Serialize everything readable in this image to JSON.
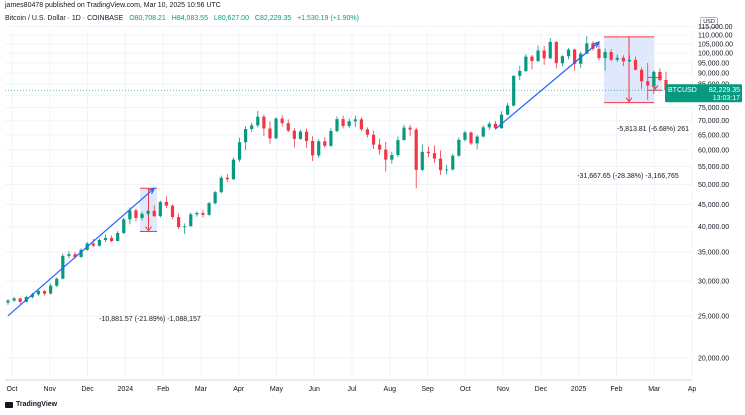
{
  "header": {
    "publisher_line": "james80478 published on TradingView.com, Mar 10, 2025 10:56 UTC",
    "symbol_title": "Bitcoin / U.S. Dollar · 1D · COINBASE",
    "open_label": "O80,708.21",
    "high_label": "H84,083.55",
    "low_label": "L80,627.00",
    "close_label": "C82,229.35",
    "change_label": "+1,530.19 (+1.90%)"
  },
  "currency": "USD",
  "brand": "TradingView",
  "colors": {
    "up": "#089981",
    "down": "#f23645",
    "trendline": "#2962ff",
    "measure_fill": "#d6e2fb",
    "measure_line": "#f23645",
    "price_tag": "#089981"
  },
  "chart_data": {
    "type": "candlestick",
    "title": "Bitcoin / U.S. Dollar · 1D · COINBASE",
    "ylim": [
      18000,
      113000
    ],
    "y_scale": "log",
    "grid": true,
    "y_ticks": [
      "115,000.00",
      "110,000.00",
      "105,000.00",
      "100,000.00",
      "95,000.00",
      "90,000.00",
      "85,000.00",
      "80,000.00",
      "75,000.00",
      "70,000.00",
      "65,000.00",
      "60,000.00",
      "55,000.00",
      "50,000.00",
      "45,000.00",
      "40,000.00",
      "35,000.00",
      "30,000.00",
      "25,000.00",
      "20,000.00"
    ],
    "x_ticks": [
      "Oct",
      "Nov",
      "Dec",
      "2024",
      "Feb",
      "Mar",
      "Apr",
      "May",
      "Jun",
      "Jul",
      "Aug",
      "Sep",
      "Oct",
      "Nov",
      "Dec",
      "2025",
      "Feb",
      "Mar",
      "Ap"
    ],
    "last_price": "82,229.35",
    "last_price_time": "13:03:17",
    "annotations": [
      {
        "type": "measure",
        "text": "-10,881.57 (-21.89%) -1,088,157",
        "low": 39000,
        "high": 49000
      },
      {
        "type": "measure",
        "text": "-31,667.65 (-28.38%) -3,166,765",
        "low": 77000,
        "high": 109000
      },
      {
        "type": "measure",
        "text": "-5,813.81 (-6.68%) 261",
        "low": 82200,
        "high": 88000
      },
      {
        "type": "trendline",
        "from": 25000,
        "to": 49000
      },
      {
        "type": "trendline",
        "from": 67000,
        "to": 106000
      }
    ],
    "series": [
      {
        "values": [
          [
            26800,
            27300,
            26500,
            27100
          ],
          [
            27100,
            27600,
            26900,
            27400
          ],
          [
            27400,
            27500,
            26600,
            26900
          ],
          [
            26900,
            27800,
            26800,
            27600
          ],
          [
            27600,
            28200,
            27400,
            28000
          ],
          [
            28000,
            28700,
            27800,
            28500
          ],
          [
            28500,
            28600,
            27800,
            28100
          ],
          [
            28100,
            29600,
            28000,
            29300
          ],
          [
            29300,
            30600,
            29100,
            30400
          ],
          [
            30400,
            34700,
            30300,
            34300
          ],
          [
            34300,
            35200,
            33900,
            34600
          ],
          [
            34600,
            35000,
            33800,
            34100
          ],
          [
            34100,
            35700,
            33900,
            35400
          ],
          [
            35400,
            36900,
            35200,
            36600
          ],
          [
            36600,
            37500,
            35900,
            36200
          ],
          [
            36200,
            37600,
            36000,
            37300
          ],
          [
            37300,
            38400,
            36900,
            37700
          ],
          [
            37700,
            38200,
            36900,
            37100
          ],
          [
            37100,
            39100,
            37000,
            38700
          ],
          [
            38700,
            42000,
            38500,
            41600
          ],
          [
            41600,
            44300,
            40500,
            43600
          ],
          [
            43600,
            44000,
            41200,
            41900
          ],
          [
            41900,
            43300,
            41400,
            42800
          ],
          [
            42800,
            43800,
            42300,
            43500
          ],
          [
            43500,
            44800,
            42100,
            42300
          ],
          [
            42300,
            45900,
            42000,
            45600
          ],
          [
            45600,
            47000,
            44200,
            44700
          ],
          [
            44700,
            45000,
            41600,
            42100
          ],
          [
            42100,
            42900,
            39500,
            39900
          ],
          [
            39900,
            40700,
            38500,
            40100
          ],
          [
            40100,
            43100,
            40000,
            42700
          ],
          [
            42700,
            43400,
            42200,
            43000
          ],
          [
            43000,
            43700,
            42000,
            42600
          ],
          [
            42600,
            45600,
            42400,
            45300
          ],
          [
            45300,
            48300,
            45000,
            48000
          ],
          [
            48000,
            52400,
            47700,
            51800
          ],
          [
            51800,
            52800,
            50700,
            51400
          ],
          [
            51400,
            57600,
            51200,
            57000
          ],
          [
            57000,
            64000,
            56300,
            62500
          ],
          [
            62500,
            68000,
            60000,
            67000
          ],
          [
            67000,
            69200,
            66000,
            68300
          ],
          [
            68300,
            73800,
            67600,
            71500
          ],
          [
            71500,
            72300,
            64500,
            67200
          ],
          [
            67200,
            69800,
            62000,
            63800
          ],
          [
            63800,
            71300,
            63500,
            70800
          ],
          [
            70800,
            72100,
            67900,
            69100
          ],
          [
            69100,
            70500,
            65900,
            66400
          ],
          [
            66400,
            67300,
            60800,
            63600
          ],
          [
            63600,
            66800,
            63300,
            66100
          ],
          [
            66100,
            67200,
            60700,
            62900
          ],
          [
            62900,
            64500,
            56600,
            58300
          ],
          [
            58300,
            63500,
            57500,
            62800
          ],
          [
            62800,
            64100,
            60600,
            61300
          ],
          [
            61300,
            67300,
            61000,
            66300
          ],
          [
            66300,
            71600,
            65800,
            70600
          ],
          [
            70600,
            71900,
            67200,
            68100
          ],
          [
            68100,
            70800,
            67400,
            69800
          ],
          [
            69800,
            71900,
            67700,
            70500
          ],
          [
            70500,
            71300,
            66200,
            66900
          ],
          [
            66900,
            67600,
            64100,
            65000
          ],
          [
            65000,
            66400,
            60300,
            61700
          ],
          [
            61700,
            63600,
            58500,
            60100
          ],
          [
            60100,
            62600,
            53500,
            57000
          ],
          [
            57000,
            59400,
            55800,
            58400
          ],
          [
            58400,
            64400,
            57800,
            63200
          ],
          [
            63200,
            68500,
            63000,
            67500
          ],
          [
            67500,
            68500,
            64500,
            66800
          ],
          [
            66800,
            67500,
            49000,
            54000
          ],
          [
            54000,
            61800,
            53700,
            59400
          ],
          [
            59400,
            61100,
            57800,
            59000
          ],
          [
            59000,
            61400,
            56000,
            57300
          ],
          [
            57300,
            59800,
            52600,
            53900
          ],
          [
            53900,
            55400,
            52700,
            54100
          ],
          [
            54100,
            58800,
            53800,
            58200
          ],
          [
            58200,
            64100,
            57900,
            63300
          ],
          [
            63300,
            66400,
            62700,
            65800
          ],
          [
            65800,
            66100,
            61600,
            62100
          ],
          [
            62100,
            64900,
            60200,
            64400
          ],
          [
            64400,
            68300,
            64000,
            67600
          ],
          [
            67600,
            69600,
            66700,
            68900
          ],
          [
            68900,
            69900,
            66800,
            67300
          ],
          [
            67300,
            73600,
            67100,
            72300
          ],
          [
            72300,
            76900,
            72000,
            75800
          ],
          [
            75800,
            89000,
            75500,
            88700
          ],
          [
            88700,
            93500,
            86700,
            91000
          ],
          [
            91000,
            99500,
            90500,
            98200
          ],
          [
            98200,
            99000,
            91800,
            95900
          ],
          [
            95900,
            104100,
            95500,
            101400
          ],
          [
            101400,
            103800,
            94000,
            97300
          ],
          [
            97300,
            108300,
            97000,
            106100
          ],
          [
            106100,
            106500,
            92300,
            94800
          ],
          [
            94800,
            98900,
            93300,
            98400
          ],
          [
            98400,
            102700,
            96800,
            101900
          ],
          [
            101900,
            102400,
            91200,
            94500
          ],
          [
            94500,
            100800,
            92400,
            99700
          ],
          [
            99700,
            109300,
            99500,
            105300
          ],
          [
            105300,
            106500,
            101300,
            102300
          ],
          [
            102300,
            105500,
            96200,
            97400
          ],
          [
            97400,
            102500,
            91200,
            100600
          ],
          [
            100600,
            102100,
            95700,
            96600
          ],
          [
            96600,
            99400,
            95500,
            97600
          ],
          [
            97600,
            98900,
            93400,
            95800
          ],
          [
            95800,
            99100,
            95400,
            96500
          ],
          [
            96500,
            98100,
            91400,
            91600
          ],
          [
            91600,
            92700,
            82800,
            86200
          ],
          [
            86200,
            95000,
            78200,
            84300
          ],
          [
            84300,
            91200,
            80600,
            90600
          ],
          [
            90600,
            92300,
            86200,
            86800
          ],
          [
            86800,
            90700,
            80100,
            82200
          ]
        ]
      }
    ]
  }
}
